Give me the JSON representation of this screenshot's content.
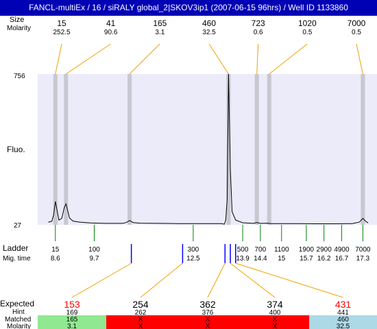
{
  "window": {
    "title": "FANCL-multiEx / 16 / siRALY global_2|SKOV3ip1 (2007-06-15 96hrs) / Well ID 1133860"
  },
  "labels": {
    "peak_size": "Size",
    "peak_molarity": "Molarity",
    "fluo": "Fluo.",
    "ladder": "Ladder",
    "mig_time": "Mig. time",
    "expected": "Expected",
    "hint": "Hint",
    "matched": "Matched",
    "molarity": "Molarity"
  },
  "colors": {
    "title_bg": "#0000b4",
    "plot_bg": "#ebebfa",
    "peak_band": "#c8c8d2",
    "callout": "#f0a000",
    "ladder_tick": "#008000",
    "marker_tick": "#0000ff",
    "expected_miss": "#ff0000",
    "matched_ok": "#90e890",
    "matched_fail": "#ff0000",
    "matched_other": "#add8e6"
  },
  "chart_data": {
    "type": "line",
    "title": "",
    "xlabel": "",
    "ylabel": "Fluo.",
    "ylim": [
      27,
      756
    ],
    "yticks": [
      27,
      756
    ],
    "peaks": [
      {
        "size": "15",
        "molarity": "252.5",
        "time": 8.6
      },
      {
        "size": "41",
        "molarity": "90.6",
        "time": 8.9
      },
      {
        "size": "165",
        "molarity": "3.1",
        "time": 10.7
      },
      {
        "size": "460",
        "molarity": "32.5",
        "time": 13.5
      },
      {
        "size": "723",
        "molarity": "0.6",
        "time": 14.3
      },
      {
        "size": "1020",
        "molarity": "0.5",
        "time": 14.65
      },
      {
        "size": "7000",
        "molarity": "0.5",
        "time": 17.3
      }
    ],
    "ladder": [
      {
        "bp": "15",
        "time": "8.6",
        "t": 8.6
      },
      {
        "bp": "100",
        "time": "9.7",
        "t": 9.7
      },
      {
        "bp": "300",
        "time": "12.5",
        "t": 12.5
      },
      {
        "bp": "500",
        "time": "13.9",
        "t": 13.9
      },
      {
        "bp": "700",
        "time": "14.4",
        "t": 14.4
      },
      {
        "bp": "1100",
        "time": "15",
        "t": 15.0
      },
      {
        "bp": "1900",
        "time": "15.7",
        "t": 15.7
      },
      {
        "bp": "2900",
        "time": "16.2",
        "t": 16.2
      },
      {
        "bp": "4900",
        "time": "16.7",
        "t": 16.7
      },
      {
        "bp": "7000",
        "time": "17.3",
        "t": 17.3
      }
    ],
    "trace": [
      [
        8.4,
        40
      ],
      [
        8.5,
        44
      ],
      [
        8.55,
        75
      ],
      [
        8.6,
        140
      ],
      [
        8.65,
        95
      ],
      [
        8.7,
        50
      ],
      [
        8.78,
        58
      ],
      [
        8.85,
        110
      ],
      [
        8.9,
        128
      ],
      [
        8.95,
        95
      ],
      [
        9.0,
        60
      ],
      [
        9.1,
        45
      ],
      [
        9.3,
        40
      ],
      [
        9.6,
        36
      ],
      [
        10.0,
        34
      ],
      [
        10.5,
        34
      ],
      [
        10.6,
        38
      ],
      [
        10.7,
        48
      ],
      [
        10.8,
        38
      ],
      [
        11.0,
        35
      ],
      [
        11.5,
        34
      ],
      [
        12.0,
        33
      ],
      [
        12.5,
        33
      ],
      [
        13.0,
        33
      ],
      [
        13.3,
        33
      ],
      [
        13.38,
        30
      ],
      [
        13.42,
        50
      ],
      [
        13.46,
        150
      ],
      [
        13.5,
        756
      ],
      [
        13.55,
        300
      ],
      [
        13.6,
        90
      ],
      [
        13.7,
        50
      ],
      [
        13.9,
        37
      ],
      [
        14.2,
        34
      ],
      [
        14.3,
        38
      ],
      [
        14.4,
        34
      ],
      [
        14.6,
        35
      ],
      [
        14.7,
        33
      ],
      [
        15.0,
        33
      ],
      [
        15.5,
        33
      ],
      [
        16.0,
        32
      ],
      [
        16.5,
        32
      ],
      [
        17.0,
        33
      ],
      [
        17.2,
        40
      ],
      [
        17.3,
        58
      ],
      [
        17.38,
        44
      ],
      [
        17.45,
        36
      ]
    ],
    "expected": [
      {
        "expected": "153",
        "hint": "169",
        "matched": "165",
        "molarity": "3.1",
        "marker_t": 10.75,
        "status": "ok"
      },
      {
        "expected": "254",
        "hint": "262",
        "matched": "X",
        "molarity": "X",
        "marker_t": 12.2,
        "status": "fail"
      },
      {
        "expected": "362",
        "hint": "376",
        "matched": "X",
        "molarity": "X",
        "marker_t": 13.4,
        "status": "fail"
      },
      {
        "expected": "374",
        "hint": "400",
        "matched": "X",
        "molarity": "X",
        "marker_t": 13.55,
        "status": "fail"
      },
      {
        "expected": "431",
        "hint": "441",
        "matched": "460",
        "molarity": "32.5",
        "marker_t": 13.7,
        "status": "other"
      }
    ]
  }
}
